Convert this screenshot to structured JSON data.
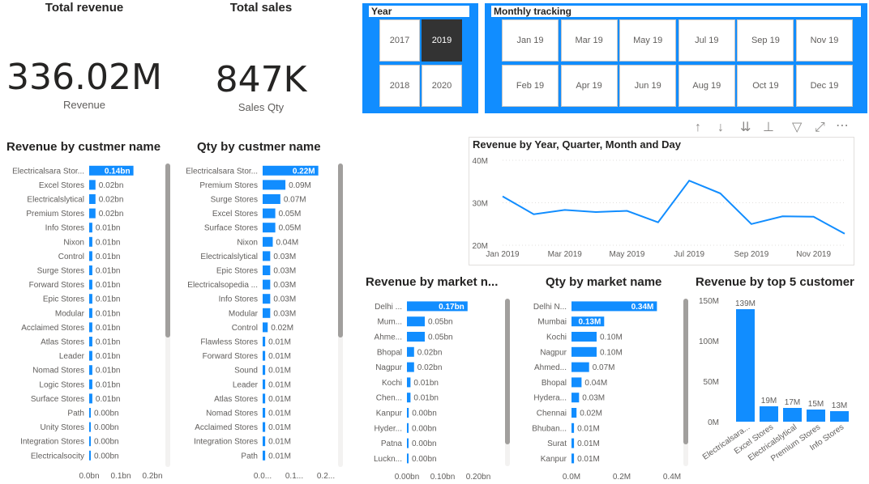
{
  "kpis": {
    "revenue": {
      "title": "Total revenue",
      "value": "336.02M",
      "label": "Revenue"
    },
    "sales": {
      "title": "Total sales",
      "value": "847K",
      "label": "Sales Qty"
    }
  },
  "year_slicer": {
    "header": "Year",
    "options": [
      "2017",
      "2019",
      "2018",
      "2020"
    ],
    "selected": "2019"
  },
  "month_slicer": {
    "header": "Monthly tracking",
    "options": [
      "Jan 19",
      "Mar 19",
      "May 19",
      "Jul 19",
      "Sep 19",
      "Nov 19",
      "Feb 19",
      "Apr 19",
      "Jun 19",
      "Aug 19",
      "Oct 19",
      "Dec 19"
    ]
  },
  "colors": {
    "accent": "#118dff",
    "selected_tile": "#333333",
    "text": "#252423",
    "muted": "#605e5c"
  },
  "chart_data": [
    {
      "id": "revenue-by-customer",
      "type": "bar",
      "orientation": "horizontal",
      "title": "Revenue by custmer name",
      "categories": [
        "Electricalsara Stor...",
        "Excel Stores",
        "Electricalslytical",
        "Premium Stores",
        "Info Stores",
        "Nixon",
        "Control",
        "Surge Stores",
        "Forward Stores",
        "Epic Stores",
        "Modular",
        "Acclaimed Stores",
        "Atlas Stores",
        "Leader",
        "Nomad Stores",
        "Logic Stores",
        "Surface Stores",
        "Path",
        "Unity Stores",
        "Integration Stores",
        "Electricalsocity"
      ],
      "values": [
        0.14,
        0.02,
        0.02,
        0.02,
        0.01,
        0.01,
        0.01,
        0.01,
        0.01,
        0.01,
        0.01,
        0.01,
        0.01,
        0.01,
        0.01,
        0.01,
        0.01,
        0.003,
        0.002,
        0.002,
        0.001
      ],
      "labels": [
        "0.14bn",
        "0.02bn",
        "0.02bn",
        "0.02bn",
        "0.01bn",
        "0.01bn",
        "0.01bn",
        "0.01bn",
        "0.01bn",
        "0.01bn",
        "0.01bn",
        "0.01bn",
        "0.01bn",
        "0.01bn",
        "0.01bn",
        "0.01bn",
        "0.01bn",
        "0.00bn",
        "0.00bn",
        "0.00bn",
        "0.00bn"
      ],
      "xlim": [
        0,
        0.2
      ],
      "xticks": [
        "0.0bn",
        "0.1bn",
        "0.2bn"
      ]
    },
    {
      "id": "qty-by-customer",
      "type": "bar",
      "orientation": "horizontal",
      "title": "Qty by custmer name",
      "categories": [
        "Electricalsara Stor...",
        "Premium Stores",
        "Surge Stores",
        "Excel Stores",
        "Surface Stores",
        "Nixon",
        "Electricalslytical",
        "Epic Stores",
        "Electricalsopedia ...",
        "Info Stores",
        "Modular",
        "Control",
        "Flawless Stores",
        "Forward Stores",
        "Sound",
        "Leader",
        "Atlas Stores",
        "Nomad Stores",
        "Acclaimed Stores",
        "Integration Stores",
        "Path"
      ],
      "values": [
        0.22,
        0.09,
        0.07,
        0.05,
        0.05,
        0.04,
        0.03,
        0.03,
        0.03,
        0.03,
        0.03,
        0.02,
        0.01,
        0.01,
        0.01,
        0.01,
        0.01,
        0.01,
        0.01,
        0.01,
        0.01
      ],
      "labels": [
        "0.22M",
        "0.09M",
        "0.07M",
        "0.05M",
        "0.05M",
        "0.04M",
        "0.03M",
        "0.03M",
        "0.03M",
        "0.03M",
        "0.03M",
        "0.02M",
        "0.01M",
        "0.01M",
        "0.01M",
        "0.01M",
        "0.01M",
        "0.01M",
        "0.01M",
        "0.01M",
        "0.01M"
      ],
      "xlim": [
        0,
        0.25
      ],
      "xticks": [
        "0.0...",
        "0.1...",
        "0.2..."
      ]
    },
    {
      "id": "revenue-by-period",
      "type": "line",
      "title": "Revenue by Year, Quarter, Month and Day",
      "x": [
        "Jan 2019",
        "Feb 2019",
        "Mar 2019",
        "Apr 2019",
        "May 2019",
        "Jun 2019",
        "Jul 2019",
        "Aug 2019",
        "Sep 2019",
        "Oct 2019",
        "Nov 2019",
        "Dec 2019"
      ],
      "values": [
        31.5,
        27.3,
        28.3,
        27.8,
        28.1,
        25.4,
        35.2,
        32.2,
        25.0,
        26.8,
        26.7,
        22.7
      ],
      "xticks": [
        "Jan 2019",
        "Mar 2019",
        "May 2019",
        "Jul 2019",
        "Sep 2019",
        "Nov 2019"
      ],
      "yticks": [
        "40M",
        "30M",
        "20M"
      ],
      "ylim": [
        20,
        40
      ]
    },
    {
      "id": "revenue-by-market",
      "type": "bar",
      "orientation": "horizontal",
      "title": "Revenue by market n...",
      "categories": [
        "Delhi ...",
        "Mum...",
        "Ahme...",
        "Bhopal",
        "Nagpur",
        "Kochi",
        "Chen...",
        "Kanpur",
        "Hyder...",
        "Patna",
        "Luckn..."
      ],
      "values": [
        0.17,
        0.05,
        0.05,
        0.02,
        0.02,
        0.01,
        0.01,
        0.005,
        0.004,
        0.003,
        0.002
      ],
      "labels": [
        "0.17bn",
        "0.05bn",
        "0.05bn",
        "0.02bn",
        "0.02bn",
        "0.01bn",
        "0.01bn",
        "0.00bn",
        "0.00bn",
        "0.00bn",
        "0.00bn"
      ],
      "xlim": [
        0,
        0.2
      ],
      "xticks": [
        "0.00bn",
        "0.10bn",
        "0.20bn"
      ]
    },
    {
      "id": "qty-by-market",
      "type": "bar",
      "orientation": "horizontal",
      "title": "Qty by market name",
      "categories": [
        "Delhi N...",
        "Mumbai",
        "Kochi",
        "Nagpur",
        "Ahmed...",
        "Bhopal",
        "Hydera...",
        "Chennai",
        "Bhuban...",
        "Surat",
        "Kanpur"
      ],
      "values": [
        0.34,
        0.13,
        0.1,
        0.1,
        0.07,
        0.04,
        0.03,
        0.02,
        0.01,
        0.01,
        0.01
      ],
      "labels": [
        "0.34M",
        "0.13M",
        "0.10M",
        "0.10M",
        "0.07M",
        "0.04M",
        "0.03M",
        "0.02M",
        "0.01M",
        "0.01M",
        "0.01M"
      ],
      "xlim": [
        0,
        0.4
      ],
      "xticks": [
        "0.0M",
        "0.2M",
        "0.4M"
      ]
    },
    {
      "id": "revenue-top5",
      "type": "bar",
      "orientation": "vertical",
      "title": "Revenue by top 5 customer",
      "categories": [
        "Electricalsara...",
        "Excel Stores",
        "Electricalslytical",
        "Premium Stores",
        "Info Stores"
      ],
      "values": [
        139,
        19,
        17,
        15,
        13
      ],
      "labels": [
        "139M",
        "19M",
        "17M",
        "15M",
        "13M"
      ],
      "ylim": [
        0,
        150
      ],
      "yticks": [
        "150M",
        "100M",
        "50M",
        "0M"
      ]
    }
  ]
}
